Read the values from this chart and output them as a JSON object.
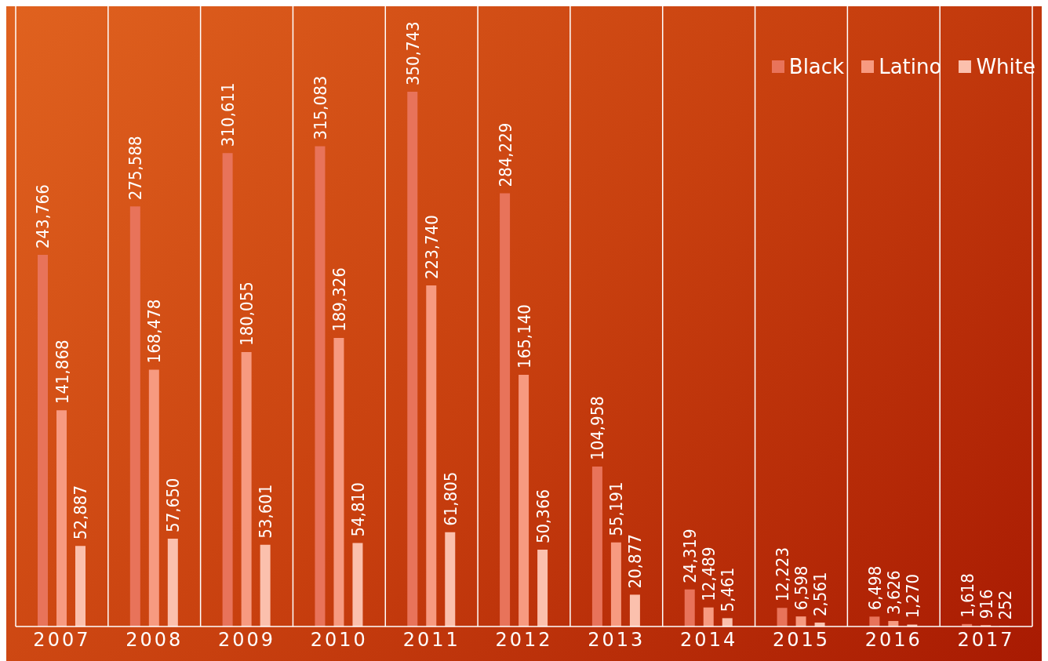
{
  "chart_data": {
    "type": "bar",
    "categories": [
      "2007",
      "2008",
      "2009",
      "2010",
      "2011",
      "2012",
      "2013",
      "2014",
      "2015",
      "2016",
      "2017"
    ],
    "series": [
      {
        "name": "Black",
        "color": "#e8735a",
        "values": [
          243766,
          275588,
          310611,
          315083,
          350743,
          284229,
          104958,
          24319,
          12223,
          6498,
          1618
        ],
        "value_labels": [
          "243,766",
          "275,588",
          "310,611",
          "315,083",
          "350,743",
          "284,229",
          "104,958",
          "24,319",
          "12,223",
          "6,498",
          "1,618"
        ]
      },
      {
        "name": "Latino",
        "color": "#f79a80",
        "values": [
          141868,
          168478,
          180055,
          189326,
          223740,
          165140,
          55191,
          12489,
          6598,
          3626,
          916
        ],
        "value_labels": [
          "141,868",
          "168,478",
          "180,055",
          "189,326",
          "223,740",
          "165,140",
          "55,191",
          "12,489",
          "6,598",
          "3,626",
          "916"
        ]
      },
      {
        "name": "White",
        "color": "#fbc0ad",
        "values": [
          52887,
          57650,
          53601,
          54810,
          61805,
          50366,
          20877,
          5461,
          2561,
          1270,
          252
        ],
        "value_labels": [
          "52,887",
          "57,650",
          "53,601",
          "54,810",
          "61,805",
          "50,366",
          "20,877",
          "5,461",
          "2,561",
          "1,270",
          "252"
        ]
      }
    ],
    "grid": "x",
    "legend": "top right"
  }
}
